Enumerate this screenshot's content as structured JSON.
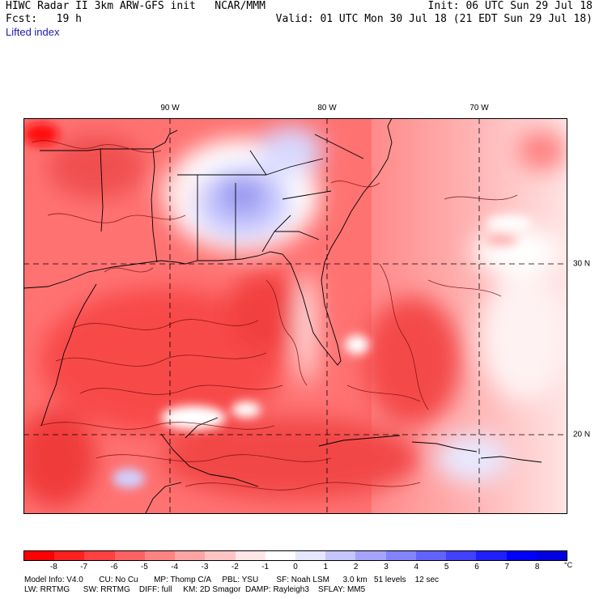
{
  "header": {
    "title": "HIWC Radar II 3km ARW-GFS init   NCAR/MMM",
    "forecast": "Fcst:   19 h",
    "init": "Init: 06 UTC Sun 29 Jul 18",
    "valid": "Valid: 01 UTC Mon 30 Jul 18 (21 EDT Sun 29 Jul 18)",
    "variable": "Lifted index"
  },
  "map": {
    "lon_labels": [
      "90 W",
      "80 W",
      "70 W"
    ],
    "lat_labels": [
      "30 N",
      "20 N"
    ],
    "grid_line_color": "#000000"
  },
  "colorbar": {
    "tick_labels": [
      "-8",
      "-7",
      "-6",
      "-5",
      "-4",
      "-3",
      "-2",
      "-1",
      "0",
      "1",
      "2",
      "3",
      "4",
      "5",
      "6",
      "7",
      "8"
    ],
    "unit": "°C",
    "colors": [
      "#ff0000",
      "#ff2020",
      "#ff4141",
      "#ff6262",
      "#ff8383",
      "#ffa4a4",
      "#ffc5c5",
      "#ffe6e6",
      "#ffffff",
      "#e6e6ff",
      "#c5c5ff",
      "#a4a4ff",
      "#8383ff",
      "#6262ff",
      "#4141ff",
      "#2020ff",
      "#0000ff",
      "#0000e0"
    ]
  },
  "model_info": {
    "line1": "Model Info: V4.0       CU: No Cu       MP: Thomp C/A     PBL: YSU        SF: Noah LSM      3.0 km   51 levels    12 sec",
    "line2": "LW: RRTMG      SW: RRTMG    DIFF: full     KM: 2D Smagor  DAMP: Rayleigh3    SFLAY: MM5"
  }
}
